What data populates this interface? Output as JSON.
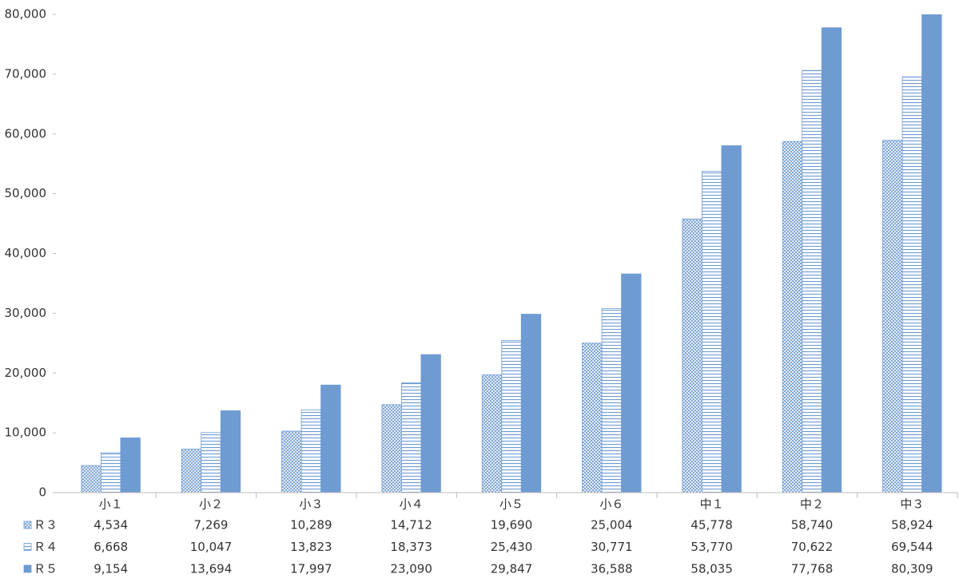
{
  "chart_data": {
    "type": "bar",
    "categories": [
      "小１",
      "小２",
      "小３",
      "小４",
      "小５",
      "小６",
      "中１",
      "中２",
      "中３"
    ],
    "series": [
      {
        "name": "Ｒ３",
        "color": "#6f9bd3",
        "pattern": "crosshatch",
        "values": [
          4534,
          7269,
          10289,
          14712,
          19690,
          25004,
          45778,
          58740,
          58924
        ],
        "value_labels": [
          "4,534",
          "7,269",
          "10,289",
          "14,712",
          "19,690",
          "25,004",
          "45,778",
          "58,740",
          "58,924"
        ]
      },
      {
        "name": "Ｒ４",
        "color": "#6f9bd3",
        "pattern": "horizontal",
        "values": [
          6668,
          10047,
          13823,
          18373,
          25430,
          30771,
          53770,
          70622,
          69544
        ],
        "value_labels": [
          "6,668",
          "10,047",
          "13,823",
          "18,373",
          "25,430",
          "30,771",
          "53,770",
          "70,622",
          "69,544"
        ]
      },
      {
        "name": "Ｒ５",
        "color": "#6f9bd3",
        "pattern": "solid",
        "values": [
          9154,
          13694,
          17997,
          23090,
          29847,
          36588,
          58035,
          77768,
          80309
        ],
        "value_labels": [
          "9,154",
          "13,694",
          "17,997",
          "23,090",
          "29,847",
          "36,588",
          "58,035",
          "77,768",
          "80,309"
        ]
      }
    ],
    "ylim": [
      0,
      80000
    ],
    "yticks": [
      0,
      {
        "value": 10000,
        "label": "10,000"
      },
      {
        "value": 20000,
        "label": "20,000"
      },
      {
        "value": 30000,
        "label": "30,000"
      },
      {
        "value": 40000,
        "label": "40,000"
      },
      {
        "value": 50000,
        "label": "50,000"
      },
      {
        "value": 60000,
        "label": "60,000"
      },
      {
        "value": 70000,
        "label": "70,000"
      },
      {
        "value": 80000,
        "label": "80,000"
      }
    ],
    "grid": false,
    "data_table": true
  }
}
